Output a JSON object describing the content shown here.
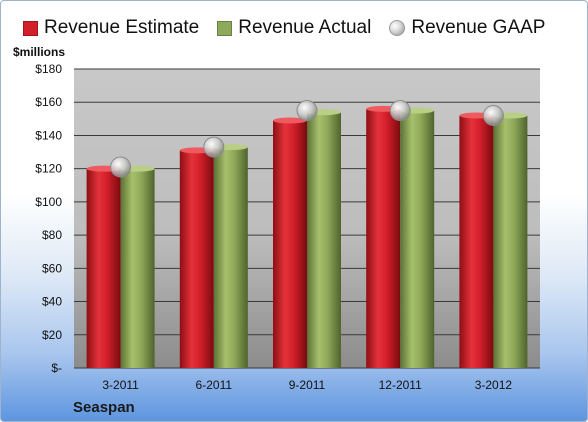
{
  "colors": {
    "estimate": "#d31f2a",
    "actual": "#8fa95a",
    "gaap": "#cfcfcf"
  },
  "chart_data": {
    "type": "bar",
    "company": "Seaspan",
    "unit_label": "$millions",
    "categories": [
      "3-2011",
      "6-2011",
      "9-2011",
      "12-2011",
      "3-2012"
    ],
    "y_ticks": [
      "$-",
      "$20",
      "$40",
      "$60",
      "$80",
      "$100",
      "$120",
      "$140",
      "$160",
      "$180"
    ],
    "ylim": [
      0,
      180
    ],
    "grid": true,
    "legend_position": "top",
    "series": [
      {
        "name": "Revenue Estimate",
        "values": [
          120,
          131,
          149,
          156,
          152
        ]
      },
      {
        "name": "Revenue Actual",
        "values": [
          120,
          133,
          154,
          155,
          152
        ]
      },
      {
        "name": "Revenue GAAP",
        "values": [
          121,
          133,
          155,
          155,
          152
        ]
      }
    ]
  }
}
